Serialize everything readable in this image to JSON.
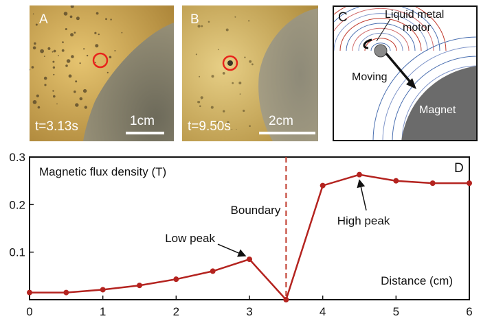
{
  "panels": {
    "a": {
      "label": "A",
      "time": "t=3.13s",
      "scale": "1cm"
    },
    "b": {
      "label": "B",
      "time": "t=9.50s",
      "scale": "2cm"
    },
    "c": {
      "label": "C",
      "motor_label_1": "Liquid metal",
      "motor_label_2": "motor",
      "moving_label": "Moving",
      "magnet_label": "Magnet"
    }
  },
  "colors": {
    "line": "#b4231f",
    "boundary": "#c0392b",
    "photo_bg": "#c9a24a",
    "magnet": "#6b6b6b"
  },
  "chart_data": {
    "type": "line",
    "panel_label": "D",
    "ylabel": "Magnetic flux density (T)",
    "xlabel": "Distance (cm)",
    "xlim": [
      0,
      6
    ],
    "ylim": [
      0,
      0.3
    ],
    "x_ticks": [
      "0",
      "1",
      "2",
      "3",
      "4",
      "5",
      "6"
    ],
    "y_ticks": [
      "0.1",
      "0.2",
      "0.3"
    ],
    "x": [
      0,
      0.5,
      1,
      1.5,
      2,
      2.5,
      3,
      3.5,
      4,
      4.5,
      5,
      5.5,
      6
    ],
    "y": [
      0.015,
      0.015,
      0.021,
      0.03,
      0.043,
      0.06,
      0.085,
      0.0,
      0.24,
      0.263,
      0.25,
      0.245,
      0.245
    ],
    "boundary": {
      "x": 3.5,
      "label": "Boundary"
    },
    "annotations": [
      {
        "text": "Low peak",
        "x": 3,
        "y": 0.085
      },
      {
        "text": "High peak",
        "x": 4.5,
        "y": 0.263
      }
    ]
  }
}
